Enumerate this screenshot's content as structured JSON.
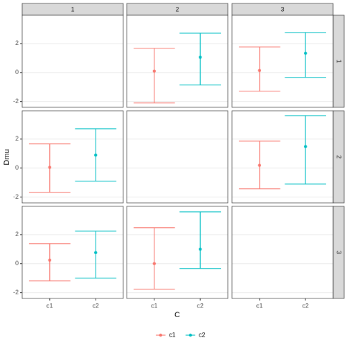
{
  "chart_data": {
    "type": "errorbar",
    "xlabel": "C",
    "ylabel": "Dmu",
    "categories": [
      "c1",
      "c2"
    ],
    "series": [
      {
        "name": "c1",
        "color": "#F8766D"
      },
      {
        "name": "c2",
        "color": "#00BFC4"
      }
    ],
    "facet_cols": [
      "1",
      "2",
      "3"
    ],
    "facet_rows": [
      "1",
      "2",
      "3"
    ],
    "ylim": [
      -2.4,
      3.95
    ],
    "yticks": [
      -2,
      0,
      2
    ],
    "grid": true,
    "legend": "bottom",
    "panels": [
      [
        null,
        {
          "values": [
            0.1,
            1.05
          ],
          "lower": [
            -2.1,
            -0.86
          ],
          "upper": [
            1.67,
            2.71
          ]
        },
        {
          "values": [
            0.14,
            1.33
          ],
          "lower": [
            -1.29,
            -0.33
          ],
          "upper": [
            1.76,
            2.76
          ]
        }
      ],
      [
        {
          "values": [
            0.05,
            0.9
          ],
          "lower": [
            -1.67,
            -0.9
          ],
          "upper": [
            1.67,
            2.71
          ]
        },
        null,
        {
          "values": [
            0.19,
            1.48
          ],
          "lower": [
            -1.43,
            -1.1
          ],
          "upper": [
            1.86,
            3.62
          ]
        }
      ],
      [
        {
          "values": [
            0.24,
            0.76
          ],
          "lower": [
            -1.19,
            -1.0
          ],
          "upper": [
            1.38,
            2.24
          ]
        },
        {
          "values": [
            0.0,
            1.0
          ],
          "lower": [
            -1.76,
            -0.33
          ],
          "upper": [
            2.48,
            3.57
          ]
        },
        null
      ]
    ]
  }
}
